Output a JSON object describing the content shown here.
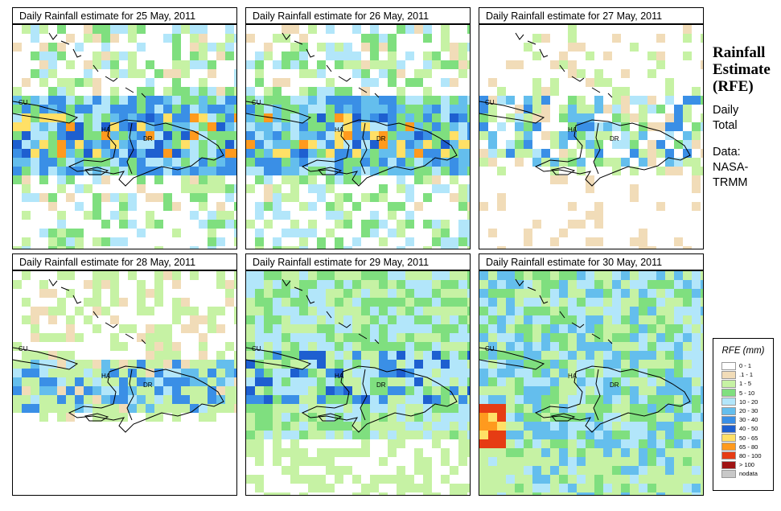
{
  "panels": [
    {
      "title": "Daily Rainfall estimate for  25 May, 2011",
      "seed": 11,
      "pattern": "north-heavy"
    },
    {
      "title": "Daily Rainfall estimate for  26 May, 2011",
      "seed": 23,
      "pattern": "east-heavy"
    },
    {
      "title": "Daily Rainfall estimate for  27 May, 2011",
      "seed": 37,
      "pattern": "sparse"
    },
    {
      "title": "Daily Rainfall estimate for  28 May, 2011",
      "seed": 41,
      "pattern": "light"
    },
    {
      "title": "Daily Rainfall estimate for  29 May, 2011",
      "seed": 53,
      "pattern": "widespread"
    },
    {
      "title": "Daily Rainfall estimate for  30 May, 2011",
      "seed": 67,
      "pattern": "west-heavy"
    }
  ],
  "map_labels": {
    "cuba": "CU",
    "haiti": "HA",
    "dominican_republic": "DR"
  },
  "side": {
    "title_lines": [
      "Rainfall",
      "Estimate",
      "(RFE)"
    ],
    "daily_lines": [
      "Daily",
      "Total"
    ],
    "source_lines": [
      "Data:",
      "NASA-",
      "TRMM"
    ]
  },
  "legend": {
    "title": "RFE (mm)",
    "items": [
      {
        "label": "0 - 1",
        "color": "#ffffff"
      },
      {
        "label": ".1 - 1",
        "color": "#f1dcb8"
      },
      {
        "label": "1 - 5",
        "color": "#c6f2a4"
      },
      {
        "label": "5 - 10",
        "color": "#7fdf7f"
      },
      {
        "label": "10 - 20",
        "color": "#b2e6fa"
      },
      {
        "label": "20 - 30",
        "color": "#64beed"
      },
      {
        "label": "30 - 40",
        "color": "#3a8fe6"
      },
      {
        "label": "40 - 50",
        "color": "#1e5fd0"
      },
      {
        "label": "50 - 65",
        "color": "#ffe066"
      },
      {
        "label": "65 - 80",
        "color": "#ff9a1e"
      },
      {
        "label": "80 - 100",
        "color": "#e63c14"
      },
      {
        "label": "> 100",
        "color": "#a01414"
      },
      {
        "label": "nodata",
        "color": "#c8c8c8"
      }
    ]
  }
}
